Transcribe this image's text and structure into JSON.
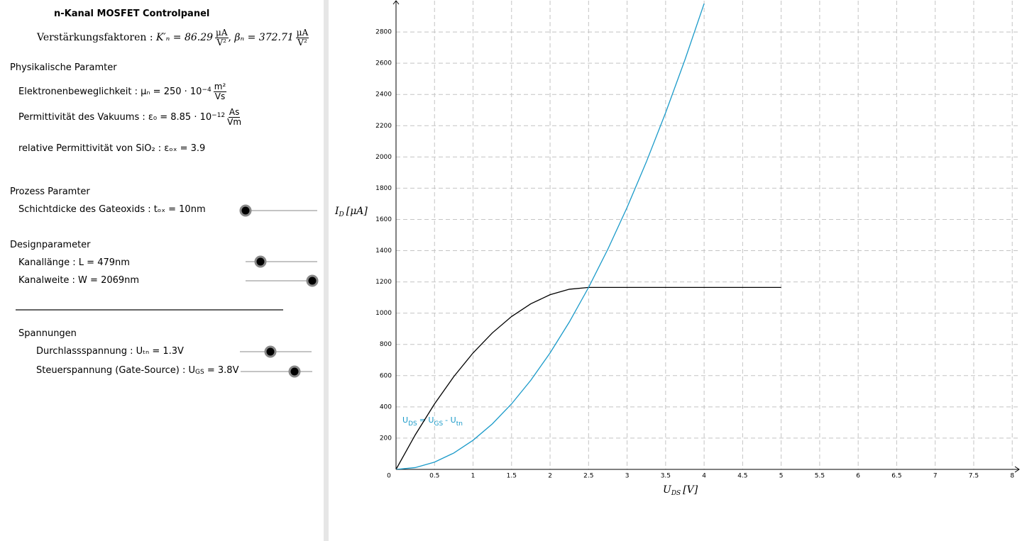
{
  "panel": {
    "title": "n-Kanal MOSFET Controlpanel",
    "gain": {
      "label": "Verstärkungsfaktoren :",
      "k": "K′ₙ = 86.29",
      "beta": "βₙ = 372.71",
      "unit_num": "μA",
      "unit_den": "V²"
    },
    "physical": {
      "heading": "Physikalische Paramter",
      "mobility": {
        "label": "Elektronenbeweglichkeit : μₙ = 250 · 10",
        "exp": "−4",
        "num": "m²",
        "den": "Vs"
      },
      "permittivity": {
        "label": "Permittivität des Vakuums : ε₀ = 8.85 · 10",
        "exp": "−12",
        "num": "As",
        "den": "Vm"
      },
      "relative": "relative Permittivität von SiO₂ : εₒₓ = 3.9"
    },
    "process": {
      "heading": "Prozess Paramter",
      "tox": "Schichtdicke des Gateoxids : tₒₓ = 10nm"
    },
    "design": {
      "heading": "Designparameter",
      "length": "Kanallänge : L = 479nm",
      "width": "Kanalweite : W = 2069nm"
    },
    "voltages": {
      "heading": "Spannungen",
      "utn": "Durchlassspannung : Uₜₙ = 1.3V",
      "ugs": {
        "text": "Steuerspannung (Gate-Source) : U",
        "sub": "GS",
        "value": "= 3.8V"
      }
    }
  },
  "chart_data": {
    "type": "line",
    "x": [
      0,
      0.25,
      0.5,
      0.75,
      1,
      1.25,
      1.5,
      1.75,
      2,
      2.25,
      2.5,
      2.75,
      3,
      3.25,
      3.5,
      3.75,
      4,
      4.25,
      4.5,
      4.75,
      5
    ],
    "series": [
      {
        "color": "#000000",
        "values": [
          0,
          221.3,
          419.3,
          594.0,
          745.4,
          873.5,
          978.4,
          1059.9,
          1118.1,
          1153.1,
          1164.7,
          1164.7,
          1164.7,
          1164.7,
          1164.7,
          1164.7,
          1164.7,
          1164.7,
          1164.7,
          1164.7,
          1164.7
        ]
      },
      {
        "color": "#1a9ac9",
        "values": [
          0,
          11.6,
          46.6,
          104.8,
          186.4,
          291.2,
          419.3,
          570.7,
          745.4,
          943.4,
          1164.7,
          1409.3,
          1677.2,
          1968.4,
          2282.9,
          2620.6,
          2981.7,
          null,
          null,
          null,
          null
        ]
      }
    ],
    "xlim": [
      0,
      8.09
    ],
    "ylim": [
      0,
      3000
    ],
    "xticks": [
      0,
      0.5,
      1,
      1.5,
      2,
      2.5,
      3,
      3.5,
      4,
      4.5,
      5,
      5.5,
      6,
      6.5,
      7,
      7.5,
      8
    ],
    "yticks": [
      200,
      400,
      600,
      800,
      1000,
      1200,
      1400,
      1600,
      1800,
      2000,
      2200,
      2400,
      2600,
      2800
    ],
    "grid": true,
    "x_label": {
      "text": "U",
      "sub": "DS",
      "unit": "[V]"
    },
    "y_label": {
      "text": "I",
      "sub": "D",
      "unit": "[μA]"
    },
    "annotation": {
      "parts": [
        "U",
        "DS",
        "= U",
        "GS",
        "- U",
        "tn"
      ],
      "color": "#1a9ac9"
    }
  }
}
